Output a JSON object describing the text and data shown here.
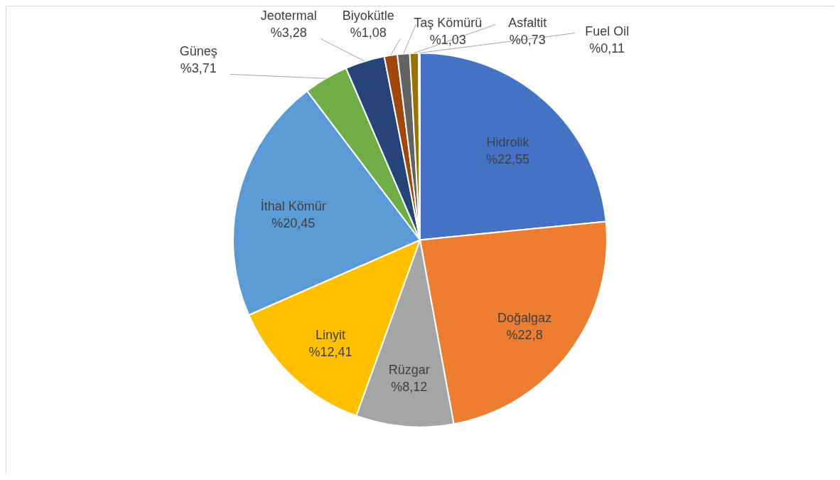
{
  "chart_data": {
    "type": "pie",
    "categories": [
      "Hidrolik",
      "Doğalgaz",
      "Rüzgar",
      "Linyit",
      "İthal Kömür",
      "Güneş",
      "Jeotermal",
      "Biyokütle",
      "Taş Kömürü",
      "Asfaltit",
      "Fuel Oil"
    ],
    "values": [
      22.55,
      22.8,
      8.12,
      12.41,
      20.45,
      3.71,
      3.28,
      1.08,
      1.03,
      0.73,
      0.11
    ],
    "value_labels": [
      "%22,55",
      "%22,8",
      "%8,12",
      "%12,41",
      "%20,45",
      "%3,71",
      "%3,28",
      "%1,08",
      "%1,03",
      "%0,73",
      "%0,11"
    ],
    "colors": [
      "#4472c4",
      "#ed7d31",
      "#a5a5a5",
      "#ffc000",
      "#5b9bd5",
      "#70ad47",
      "#264478",
      "#9e480e",
      "#636363",
      "#997300",
      "#43682b"
    ]
  }
}
